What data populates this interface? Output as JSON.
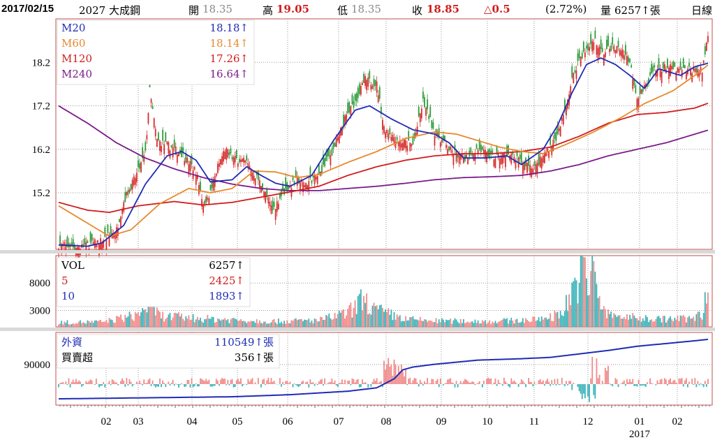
{
  "header": {
    "date": "2017/02/15",
    "stock": "2027 大成鋼",
    "open_label": "開",
    "open": "18.35",
    "high_label": "高",
    "high": "19.05",
    "low_label": "低",
    "low": "18.35",
    "close_label": "收",
    "close": "18.85",
    "change": "△0.5",
    "change_pct": "(2.72%)",
    "volume_label": "量",
    "volume": "6257↑張",
    "period": "日線"
  },
  "colors": {
    "up": "#d62d2d",
    "down": "#2e9b3a",
    "ma20": "#1f2bb5",
    "ma60": "#e8892b",
    "ma120": "#d11c1c",
    "ma240": "#7b1a8a",
    "vol_up": "#f08a8a",
    "vol_down": "#3bb3b8",
    "foreign_line": "#1f2bb5",
    "panel_border": "#c0504d",
    "grid": "#999999"
  },
  "legend_price": [
    {
      "name": "M20",
      "value": "18.18",
      "arrow": "↑",
      "color": "#1f2bb5"
    },
    {
      "name": "M60",
      "value": "18.14",
      "arrow": "↑",
      "color": "#e8892b"
    },
    {
      "name": "M120",
      "value": "17.26",
      "arrow": "↑",
      "color": "#d11c1c"
    },
    {
      "name": "M240",
      "value": "16.64",
      "arrow": "↑",
      "color": "#7b1a8a"
    }
  ],
  "legend_volume": [
    {
      "name": "VOL",
      "value": "6257",
      "arrow": "↑",
      "color": "#000000"
    },
    {
      "name": "5",
      "value": "2425",
      "arrow": "↑",
      "color": "#d11c1c"
    },
    {
      "name": "10",
      "value": "1893",
      "arrow": "↑",
      "color": "#1f2bb5"
    }
  ],
  "legend_foreign": [
    {
      "name": "外資",
      "value": "110549",
      "arrow": "↑張",
      "color": "#1f2bb5"
    },
    {
      "name": "買賣超",
      "value": "356",
      "arrow": "↑張",
      "color": "#000000"
    }
  ],
  "chart_data": {
    "type": "candlestick",
    "months": [
      "02",
      "03",
      "04",
      "05",
      "06",
      "07",
      "08",
      "09",
      "10",
      "11",
      "12",
      "01",
      "02"
    ],
    "year_label": "2017",
    "price_axis": {
      "ticks": [
        15.2,
        16.2,
        17.2,
        18.2
      ],
      "range": [
        13.9,
        19.2
      ]
    },
    "volume_axis": {
      "ticks": [
        3000,
        8000
      ],
      "range": [
        0,
        13000
      ]
    },
    "foreign_axis": {
      "ticks": [
        90000
      ]
    },
    "ma_keypoints": {
      "MA20": [
        [
          0,
          14.0
        ],
        [
          20,
          13.97
        ],
        [
          30,
          14.05
        ],
        [
          45,
          14.45
        ],
        [
          60,
          15.4
        ],
        [
          75,
          16.05
        ],
        [
          85,
          16.15
        ],
        [
          95,
          15.95
        ],
        [
          105,
          15.45
        ],
        [
          120,
          15.5
        ],
        [
          130,
          15.8
        ],
        [
          140,
          15.6
        ],
        [
          150,
          15.42
        ],
        [
          160,
          15.35
        ],
        [
          175,
          15.6
        ],
        [
          190,
          16.4
        ],
        [
          205,
          17.1
        ],
        [
          215,
          17.2
        ],
        [
          230,
          16.9
        ],
        [
          245,
          16.65
        ],
        [
          260,
          16.55
        ],
        [
          270,
          16.35
        ],
        [
          280,
          16.0
        ],
        [
          295,
          16.0
        ],
        [
          310,
          16.05
        ],
        [
          320,
          15.85
        ],
        [
          335,
          16.2
        ],
        [
          345,
          16.75
        ],
        [
          355,
          17.5
        ],
        [
          365,
          18.15
        ],
        [
          375,
          18.3
        ],
        [
          385,
          18.15
        ],
        [
          395,
          17.9
        ],
        [
          405,
          17.6
        ],
        [
          415,
          18.05
        ],
        [
          425,
          17.95
        ],
        [
          430,
          17.9
        ],
        [
          440,
          18.1
        ],
        [
          449,
          18.18
        ]
      ],
      "MA60": [
        [
          0,
          14.9
        ],
        [
          20,
          14.5
        ],
        [
          35,
          14.2
        ],
        [
          50,
          14.35
        ],
        [
          70,
          14.95
        ],
        [
          90,
          15.3
        ],
        [
          105,
          15.2
        ],
        [
          120,
          15.3
        ],
        [
          135,
          15.7
        ],
        [
          150,
          15.68
        ],
        [
          165,
          15.55
        ],
        [
          180,
          15.62
        ],
        [
          200,
          15.9
        ],
        [
          220,
          16.15
        ],
        [
          240,
          16.45
        ],
        [
          260,
          16.6
        ],
        [
          275,
          16.55
        ],
        [
          290,
          16.4
        ],
        [
          305,
          16.25
        ],
        [
          320,
          16.15
        ],
        [
          335,
          16.1
        ],
        [
          350,
          16.3
        ],
        [
          370,
          16.6
        ],
        [
          390,
          16.95
        ],
        [
          405,
          17.25
        ],
        [
          425,
          17.55
        ],
        [
          440,
          17.9
        ],
        [
          449,
          18.14
        ]
      ],
      "MA120": [
        [
          0,
          14.98
        ],
        [
          20,
          14.8
        ],
        [
          35,
          14.75
        ],
        [
          55,
          14.9
        ],
        [
          80,
          15.0
        ],
        [
          100,
          14.92
        ],
        [
          120,
          14.98
        ],
        [
          140,
          15.1
        ],
        [
          160,
          15.22
        ],
        [
          180,
          15.35
        ],
        [
          200,
          15.6
        ],
        [
          220,
          15.8
        ],
        [
          240,
          15.95
        ],
        [
          260,
          16.05
        ],
        [
          280,
          16.1
        ],
        [
          300,
          16.1
        ],
        [
          320,
          16.15
        ],
        [
          340,
          16.25
        ],
        [
          360,
          16.5
        ],
        [
          380,
          16.8
        ],
        [
          400,
          17.0
        ],
        [
          420,
          17.05
        ],
        [
          440,
          17.15
        ],
        [
          449,
          17.26
        ]
      ],
      "MA240": [
        [
          0,
          17.2
        ],
        [
          20,
          16.8
        ],
        [
          40,
          16.35
        ],
        [
          60,
          16.0
        ],
        [
          80,
          15.75
        ],
        [
          100,
          15.55
        ],
        [
          120,
          15.4
        ],
        [
          140,
          15.3
        ],
        [
          160,
          15.25
        ],
        [
          180,
          15.25
        ],
        [
          200,
          15.3
        ],
        [
          220,
          15.35
        ],
        [
          240,
          15.42
        ],
        [
          260,
          15.5
        ],
        [
          280,
          15.55
        ],
        [
          300,
          15.57
        ],
        [
          320,
          15.6
        ],
        [
          340,
          15.7
        ],
        [
          360,
          15.85
        ],
        [
          380,
          16.05
        ],
        [
          400,
          16.2
        ],
        [
          420,
          16.35
        ],
        [
          440,
          16.55
        ],
        [
          449,
          16.64
        ]
      ]
    },
    "close_keypoints": [
      [
        0,
        14.0
      ],
      [
        15,
        13.95
      ],
      [
        30,
        14.1
      ],
      [
        40,
        14.35
      ],
      [
        45,
        15.0
      ],
      [
        55,
        15.7
      ],
      [
        60,
        16.1
      ],
      [
        63,
        17.55
      ],
      [
        68,
        16.4
      ],
      [
        75,
        16.3
      ],
      [
        85,
        16.1
      ],
      [
        95,
        15.7
      ],
      [
        100,
        14.95
      ],
      [
        105,
        15.2
      ],
      [
        110,
        15.8
      ],
      [
        115,
        16.2
      ],
      [
        120,
        16.0
      ],
      [
        130,
        15.9
      ],
      [
        140,
        15.4
      ],
      [
        148,
        14.8
      ],
      [
        155,
        15.2
      ],
      [
        165,
        15.5
      ],
      [
        170,
        15.4
      ],
      [
        180,
        15.6
      ],
      [
        190,
        16.2
      ],
      [
        198,
        16.9
      ],
      [
        205,
        17.3
      ],
      [
        212,
        17.8
      ],
      [
        220,
        17.7
      ],
      [
        225,
        16.7
      ],
      [
        235,
        16.4
      ],
      [
        245,
        16.3
      ],
      [
        252,
        17.3
      ],
      [
        260,
        16.6
      ],
      [
        270,
        16.2
      ],
      [
        280,
        16.0
      ],
      [
        290,
        16.2
      ],
      [
        300,
        16.0
      ],
      [
        310,
        16.1
      ],
      [
        320,
        15.9
      ],
      [
        330,
        15.8
      ],
      [
        340,
        16.3
      ],
      [
        345,
        16.5
      ],
      [
        350,
        17.1
      ],
      [
        355,
        17.8
      ],
      [
        360,
        18.3
      ],
      [
        366,
        18.5
      ],
      [
        370,
        18.75
      ],
      [
        376,
        18.4
      ],
      [
        382,
        18.55
      ],
      [
        390,
        18.5
      ],
      [
        395,
        18.2
      ],
      [
        400,
        17.4
      ],
      [
        405,
        17.6
      ],
      [
        412,
        18.0
      ],
      [
        420,
        18.1
      ],
      [
        430,
        18.0
      ],
      [
        440,
        18.05
      ],
      [
        445,
        18.0
      ],
      [
        449,
        18.85
      ]
    ],
    "volume_keypoints": [
      [
        0,
        800
      ],
      [
        30,
        900
      ],
      [
        55,
        2200
      ],
      [
        60,
        3600
      ],
      [
        65,
        4000
      ],
      [
        70,
        2000
      ],
      [
        100,
        1500
      ],
      [
        150,
        1000
      ],
      [
        180,
        1200
      ],
      [
        200,
        2500
      ],
      [
        210,
        5000
      ],
      [
        220,
        3000
      ],
      [
        240,
        1400
      ],
      [
        260,
        1100
      ],
      [
        300,
        1000
      ],
      [
        330,
        1300
      ],
      [
        345,
        2200
      ],
      [
        350,
        3500
      ],
      [
        355,
        6500
      ],
      [
        360,
        9000
      ],
      [
        362,
        13000
      ],
      [
        366,
        5000
      ],
      [
        370,
        12000
      ],
      [
        375,
        3500
      ],
      [
        380,
        2200
      ],
      [
        400,
        1600
      ],
      [
        420,
        1400
      ],
      [
        440,
        1600
      ],
      [
        445,
        2400
      ],
      [
        449,
        6257
      ]
    ],
    "foreign_line_keypoints": [
      [
        0,
        0.06
      ],
      [
        40,
        0.07
      ],
      [
        80,
        0.08
      ],
      [
        120,
        0.09
      ],
      [
        160,
        0.12
      ],
      [
        200,
        0.17
      ],
      [
        220,
        0.22
      ],
      [
        232,
        0.35
      ],
      [
        238,
        0.48
      ],
      [
        245,
        0.52
      ],
      [
        260,
        0.56
      ],
      [
        290,
        0.62
      ],
      [
        320,
        0.64
      ],
      [
        340,
        0.66
      ],
      [
        360,
        0.71
      ],
      [
        380,
        0.76
      ],
      [
        400,
        0.82
      ],
      [
        420,
        0.86
      ],
      [
        440,
        0.9
      ],
      [
        449,
        0.92
      ]
    ]
  }
}
